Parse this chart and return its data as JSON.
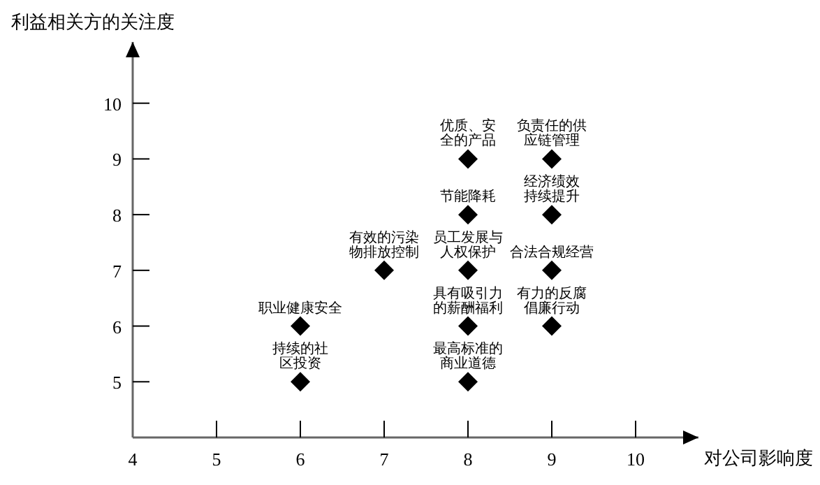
{
  "chart_data": {
    "type": "scatter",
    "xlabel": "对公司影响度",
    "ylabel": "利益相关方的关注度",
    "xlim": [
      4,
      10.75
    ],
    "ylim": [
      4,
      11.1
    ],
    "xticks": [
      4,
      5,
      6,
      7,
      8,
      9,
      10
    ],
    "yticks": [
      5,
      6,
      7,
      8,
      9,
      10
    ],
    "marker": "diamond",
    "grid": false,
    "series": [
      {
        "color": "#000000",
        "x": [
          8,
          9,
          8,
          9,
          7,
          8,
          9,
          6,
          8,
          9,
          6,
          8
        ],
        "values": [
          9,
          9,
          8,
          8,
          7,
          7,
          7,
          6,
          6,
          6,
          5,
          5
        ]
      }
    ],
    "annotations": [
      {
        "text": "优质、安全的产品",
        "x": 8,
        "y": 9
      },
      {
        "text": "负责任的供应链管理",
        "x": 9,
        "y": 9
      },
      {
        "text": "节能降耗",
        "x": 8,
        "y": 8
      },
      {
        "text": "经济绩效持续提升",
        "x": 9,
        "y": 8
      },
      {
        "text": "有效的污染物排放控制",
        "x": 7,
        "y": 7
      },
      {
        "text": "员工发展与人权保护",
        "x": 8,
        "y": 7
      },
      {
        "text": "合法合规经营",
        "x": 9,
        "y": 7
      },
      {
        "text": "职业健康安全",
        "x": 6,
        "y": 6
      },
      {
        "text": "具有吸引力的薪酬福利",
        "x": 8,
        "y": 6
      },
      {
        "text": "有力的反腐倡廉行动",
        "x": 9,
        "y": 6
      },
      {
        "text": "持续的社区投资",
        "x": 6,
        "y": 5
      },
      {
        "text": "最高标准的商业道德",
        "x": 8,
        "y": 5
      }
    ]
  }
}
